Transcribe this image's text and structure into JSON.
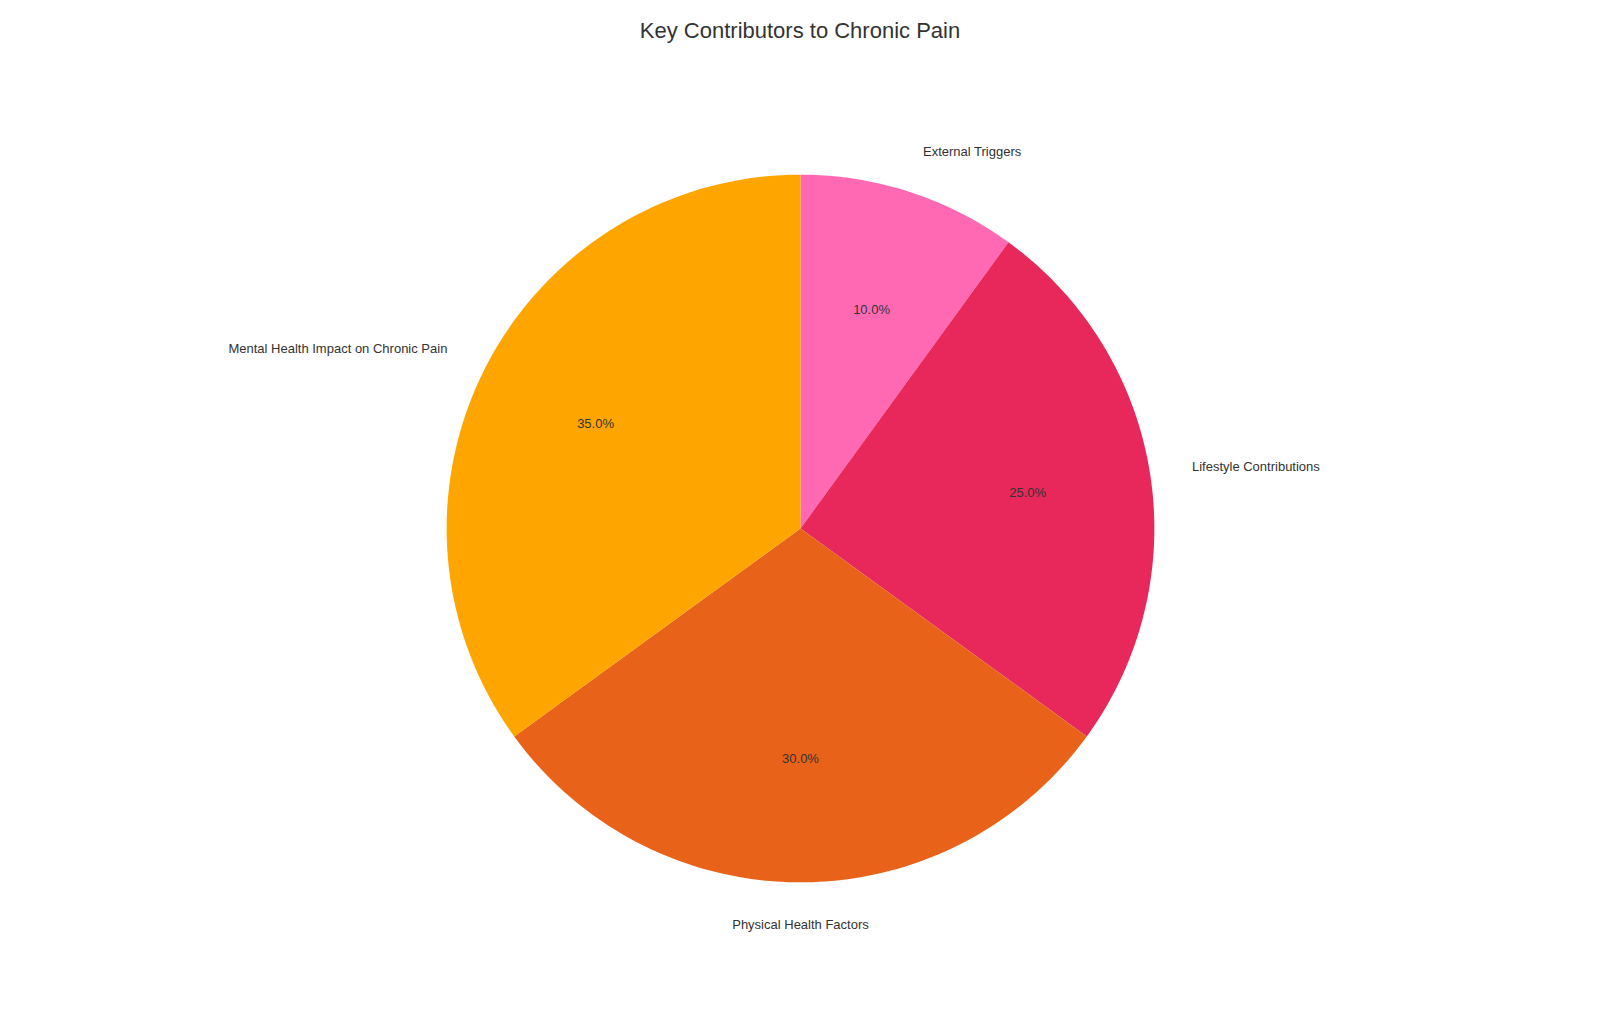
{
  "chart_data": {
    "type": "pie",
    "title": "Key Contributors to Chronic Pain",
    "categories": [
      "External Triggers",
      "Lifestyle Contributions",
      "Physical Health Factors",
      "Mental Health Impact on Chronic Pain"
    ],
    "values": [
      10.0,
      25.0,
      30.0,
      35.0
    ],
    "value_labels": [
      "10.0%",
      "25.0%",
      "30.0%",
      "35.0%"
    ],
    "colors": [
      "#FF69B4",
      "#E8275A",
      "#E8621A",
      "#FFA500"
    ],
    "data_labels": true
  }
}
